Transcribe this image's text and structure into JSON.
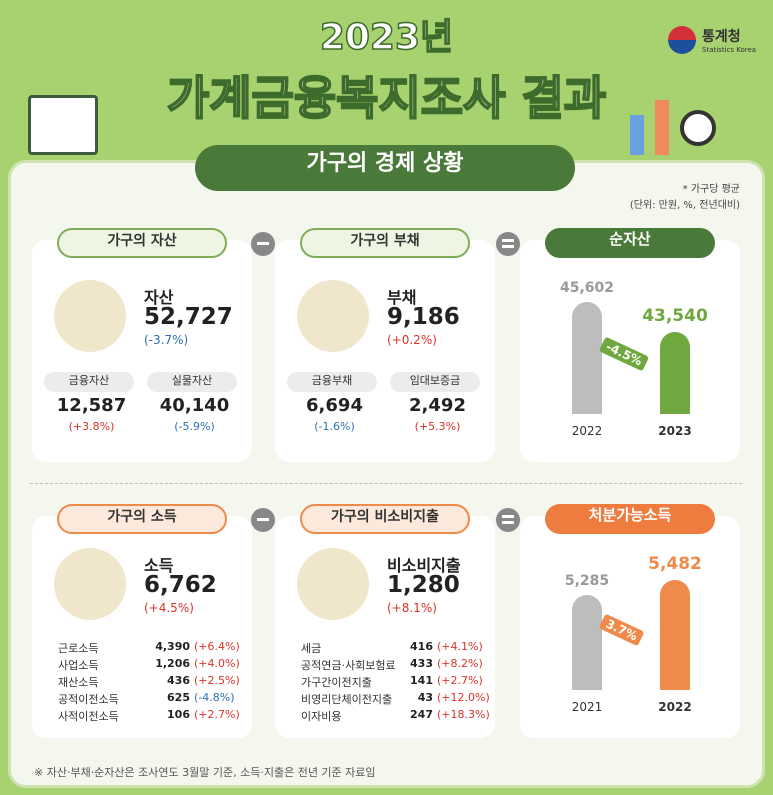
{
  "header": {
    "year_title": "2023년",
    "title": "가계금융복지조사 결과",
    "logo_ko": "통계청",
    "logo_en": "Statistics Korea"
  },
  "section_title": "가구의 경제 상황",
  "unit_note": [
    "* 가구당 평균",
    "(단위: 만원, %, 전년대비)"
  ],
  "top_row": [
    {
      "tab": "가구의 자산",
      "label": "자산",
      "value": "52,727",
      "change": "(-3.7%)",
      "items": [
        {
          "label": "금융자산",
          "value": "12,587",
          "change": "(+3.8%)"
        },
        {
          "label": "실물자산",
          "value": "40,140",
          "change": "(-5.9%)"
        }
      ]
    },
    {
      "tab": "가구의 부채",
      "label": "부채",
      "value": "9,186",
      "change": "(+0.2%)",
      "items": [
        {
          "label": "금융부채",
          "value": "6,694",
          "change": "(-1.6%)"
        },
        {
          "label": "임대보증금",
          "value": "2,492",
          "change": "(+5.3%)"
        }
      ]
    }
  ],
  "net_assets": {
    "tab": "순자산",
    "change": "-4.5%",
    "bars": [
      {
        "year": "2022",
        "value": "45,602"
      },
      {
        "year": "2023",
        "value": "43,540"
      }
    ]
  },
  "bottom_row": [
    {
      "tab": "가구의 소득",
      "label": "소득",
      "value": "6,762",
      "change": "(+4.5%)",
      "items": [
        {
          "label": "근로소득",
          "value": "4,390",
          "change": "(+6.4%)"
        },
        {
          "label": "사업소득",
          "value": "1,206",
          "change": "(+4.0%)"
        },
        {
          "label": "재산소득",
          "value": "436",
          "change": "(+2.5%)"
        },
        {
          "label": "공적이전소득",
          "value": "625",
          "change": "(-4.8%)"
        },
        {
          "label": "사적이전소득",
          "value": "106",
          "change": "(+2.7%)"
        }
      ]
    },
    {
      "tab": "가구의 비소비지출",
      "label": "비소비지출",
      "value": "1,280",
      "change": "(+8.1%)",
      "items": [
        {
          "label": "세금",
          "value": "416",
          "change": "(+4.1%)"
        },
        {
          "label": "공적연금·사회보험료",
          "value": "433",
          "change": "(+8.2%)"
        },
        {
          "label": "가구간이전지출",
          "value": "141",
          "change": "(+2.7%)"
        },
        {
          "label": "비영리단체이전지출",
          "value": "43",
          "change": "(+12.0%)"
        },
        {
          "label": "이자비용",
          "value": "247",
          "change": "(+18.3%)"
        }
      ]
    }
  ],
  "disposable_income": {
    "tab": "처분가능소득",
    "change": "3.7%",
    "bars": [
      {
        "year": "2021",
        "value": "5,285"
      },
      {
        "year": "2022",
        "value": "5,482"
      }
    ]
  },
  "footnote": "※ 자산·부채·순자산은 조사연도 3월말 기준, 소득·지출은 전년 기준 자료임"
}
